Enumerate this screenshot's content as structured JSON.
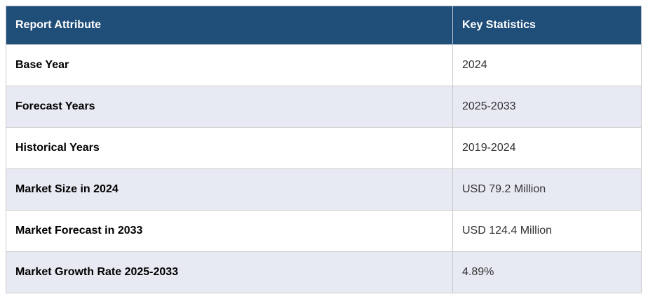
{
  "table": {
    "columns": [
      {
        "label": "Report Attribute"
      },
      {
        "label": "Key Statistics"
      }
    ],
    "rows": [
      {
        "attribute": "Base Year",
        "value": "2024"
      },
      {
        "attribute": "Forecast Years",
        "value": "2025-2033"
      },
      {
        "attribute": "Historical Years",
        "value": "2019-2024"
      },
      {
        "attribute": "Market Size in 2024",
        "value": "USD 79.2 Million"
      },
      {
        "attribute": "Market Forecast in 2033",
        "value": "USD 124.4 Million"
      },
      {
        "attribute": "Market Growth Rate 2025-2033",
        "value": "4.89%"
      }
    ],
    "colors": {
      "header_bg": "#1F4E79",
      "header_text": "#FFFFFF",
      "row_bg": "#FFFFFF",
      "row_alt_bg": "#E7E9F3",
      "border": "#CCCCCC",
      "attribute_text": "#000000",
      "value_text": "#333333"
    }
  }
}
